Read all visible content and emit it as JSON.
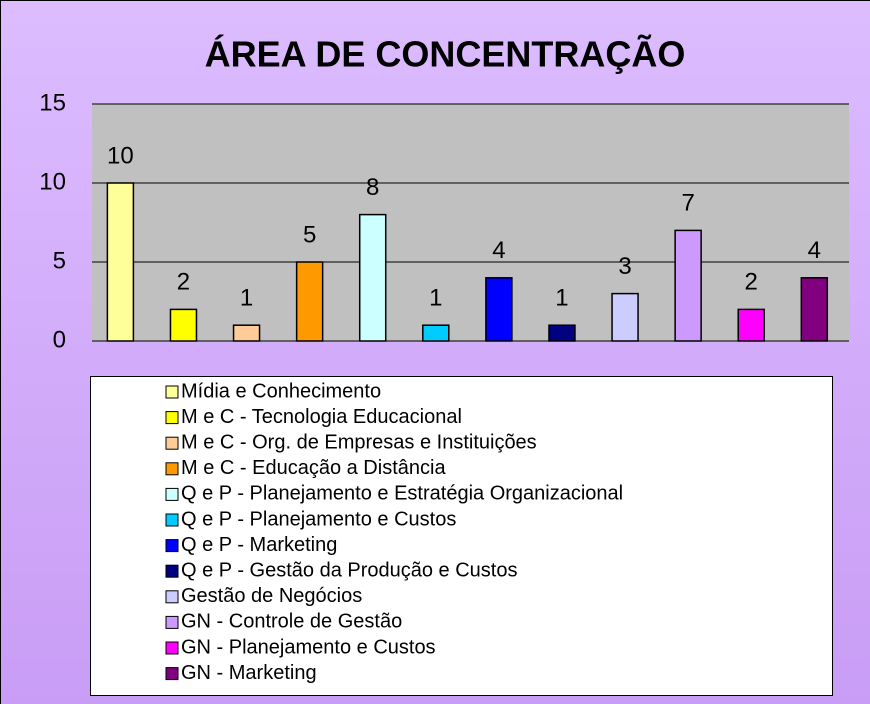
{
  "chart_data": {
    "type": "bar",
    "title": "ÁREA DE CONCENTRAÇÃO",
    "categories": [
      "Mídia e Conhecimento",
      "M e C - Tecnologia Educacional",
      "M e C - Org. de Empresas e Instituições",
      "M e C - Educação a Distância",
      "Q e P - Planejamento e Estratégia Organizacional",
      "Q e P - Planejamento e Custos",
      "Q e P - Marketing",
      "Q e P - Gestão da Produção e Custos",
      "Gestão de Negócios",
      "GN - Controle de Gestão",
      "GN - Planejamento e Custos",
      "GN - Marketing"
    ],
    "values": [
      10,
      2,
      1,
      5,
      8,
      1,
      4,
      1,
      3,
      7,
      2,
      4
    ],
    "colors": [
      "#ffff99",
      "#ffff00",
      "#ffcc99",
      "#ff9900",
      "#ccffff",
      "#00ccff",
      "#0000ff",
      "#000080",
      "#ccccff",
      "#cc99ff",
      "#ff00ff",
      "#800080"
    ],
    "ylim": [
      0,
      15
    ],
    "yticks": [
      0,
      5,
      10,
      15
    ],
    "grid": true,
    "legend": "bottom"
  }
}
